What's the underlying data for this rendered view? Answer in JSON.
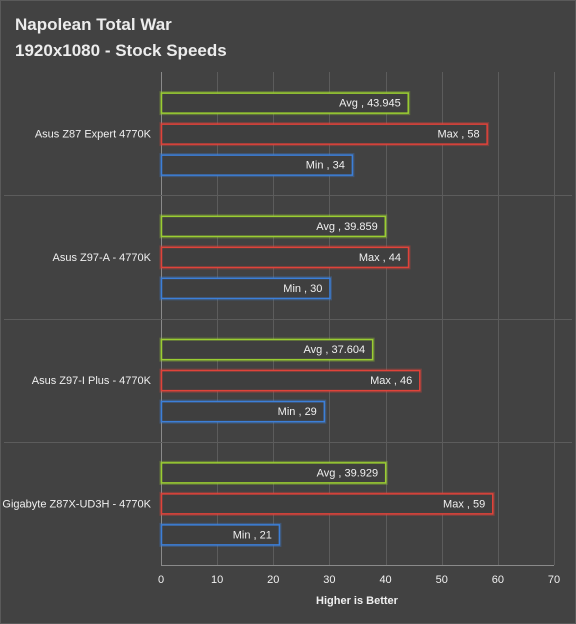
{
  "chart_data": {
    "type": "bar",
    "orientation": "horizontal",
    "title_lines": [
      "Napolean Total War",
      "1920x1080 - Stock Speeds"
    ],
    "xlabel": "Higher is Better",
    "ylabel": "",
    "xlim": [
      0,
      70
    ],
    "xticks": [
      0,
      10,
      20,
      30,
      40,
      50,
      60,
      70
    ],
    "grid": true,
    "categories": [
      "Asus Z87 Expert 4770K",
      "Asus Z97-A - 4770K",
      "Asus Z97-I Plus - 4770K",
      "Gigabyte Z87X-UD3H - 4770K"
    ],
    "series": [
      {
        "name": "Avg",
        "color": "#9acd32",
        "values": [
          43.945,
          39.859,
          37.604,
          39.929
        ]
      },
      {
        "name": "Max",
        "color": "#e0433a",
        "values": [
          58,
          44,
          46,
          59
        ]
      },
      {
        "name": "Min",
        "color": "#3c7fd8",
        "values": [
          34,
          30,
          29,
          21
        ]
      }
    ]
  }
}
